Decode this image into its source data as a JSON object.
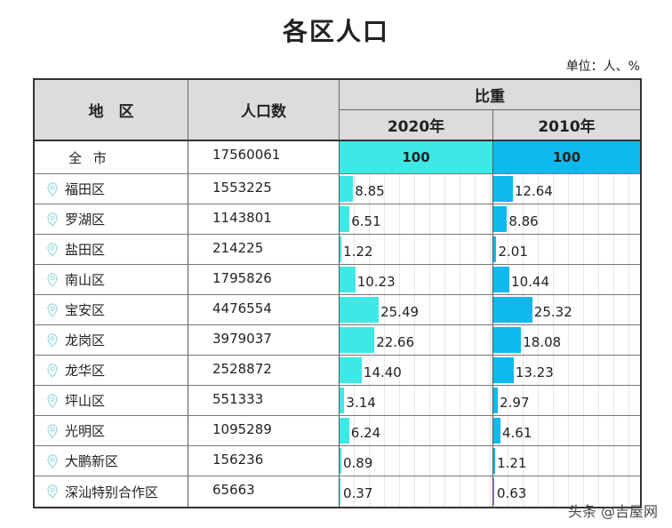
{
  "title": "各区人口",
  "unit": "单位：人、%",
  "headers": {
    "region": "地　区",
    "population": "人口数",
    "share": "比重",
    "y2020": "2020年",
    "y2010": "2010年"
  },
  "colors": {
    "y2020": "#3ee9e5",
    "y2010": "#0fb8ef",
    "header_bg": "#dcdcdc"
  },
  "watermark": "头条 @吉屋网",
  "chart_data": {
    "type": "table",
    "columns": [
      "地区",
      "人口数",
      "2020年",
      "2010年"
    ],
    "total": {
      "region": "全 市",
      "population": "17560061",
      "y2020": "100",
      "y2010": "100"
    },
    "rows": [
      {
        "region": "福田区",
        "population": "1553225",
        "y2020": "8.85",
        "y2010": "12.64"
      },
      {
        "region": "罗湖区",
        "population": "1143801",
        "y2020": "6.51",
        "y2010": "8.86"
      },
      {
        "region": "盐田区",
        "population": "214225",
        "y2020": "1.22",
        "y2010": "2.01"
      },
      {
        "region": "南山区",
        "population": "1795826",
        "y2020": "10.23",
        "y2010": "10.44"
      },
      {
        "region": "宝安区",
        "population": "4476554",
        "y2020": "25.49",
        "y2010": "25.32"
      },
      {
        "region": "龙岗区",
        "population": "3979037",
        "y2020": "22.66",
        "y2010": "18.08"
      },
      {
        "region": "龙华区",
        "population": "2528872",
        "y2020": "14.40",
        "y2010": "13.23"
      },
      {
        "region": "坪山区",
        "population": "551333",
        "y2020": "3.14",
        "y2010": "2.97"
      },
      {
        "region": "光明区",
        "population": "1095289",
        "y2020": "6.24",
        "y2010": "4.61"
      },
      {
        "region": "大鹏新区",
        "population": "156236",
        "y2020": "0.89",
        "y2010": "1.21"
      },
      {
        "region": "深汕特别合作区",
        "population": "65663",
        "y2020": "0.37",
        "y2010": "0.63"
      }
    ]
  }
}
